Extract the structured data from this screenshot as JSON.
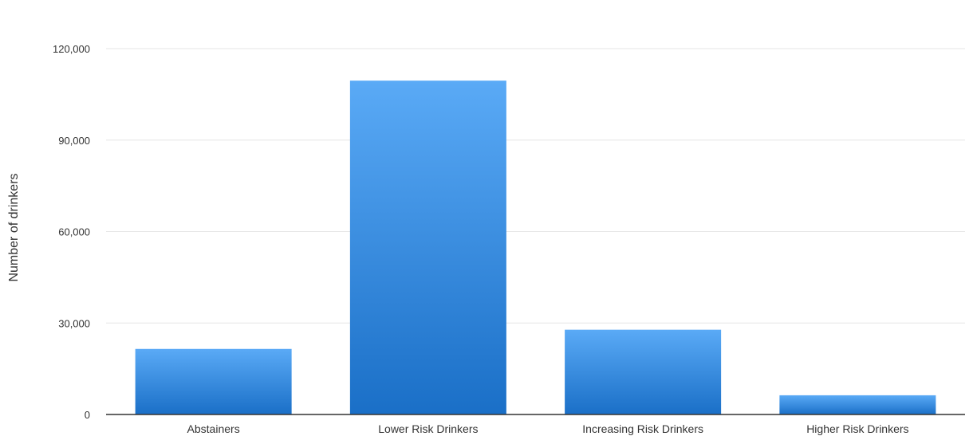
{
  "chart_data": {
    "type": "bar",
    "title": "",
    "xlabel": "",
    "ylabel": "Number of drinkers",
    "categories": [
      "Abstainers",
      "Lower Risk Drinkers",
      "Increasing Risk Drinkers",
      "Higher Risk Drinkers"
    ],
    "values": [
      21500,
      109500,
      27800,
      6300
    ],
    "ylim": [
      0,
      120000
    ],
    "yticks": [
      0,
      30000,
      60000,
      90000,
      120000
    ],
    "ytick_labels": [
      "0",
      "30,000",
      "60,000",
      "90,000",
      "120,000"
    ],
    "grid": true,
    "legend": "none",
    "colors": {
      "bar_top": "#5aaaf6",
      "bar_bottom": "#1a6fc7",
      "grid": "#e6e6e6",
      "axis": "#333333"
    }
  }
}
